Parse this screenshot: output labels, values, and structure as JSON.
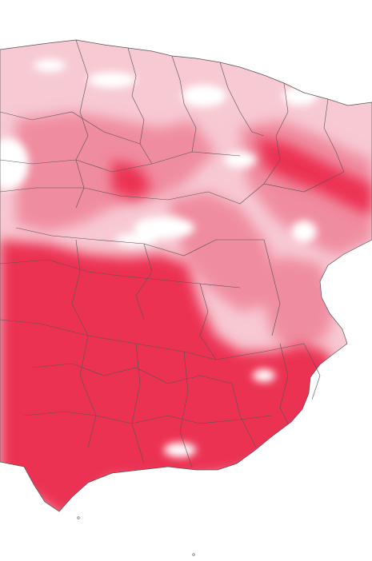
{
  "map": {
    "shading_levels": [
      "low",
      "mid",
      "high"
    ]
  },
  "colors": {
    "background": "#ffffff",
    "high": "#ec3152",
    "mid": "#f08ca0",
    "low": "#f7c9d3",
    "border": "#555555"
  }
}
